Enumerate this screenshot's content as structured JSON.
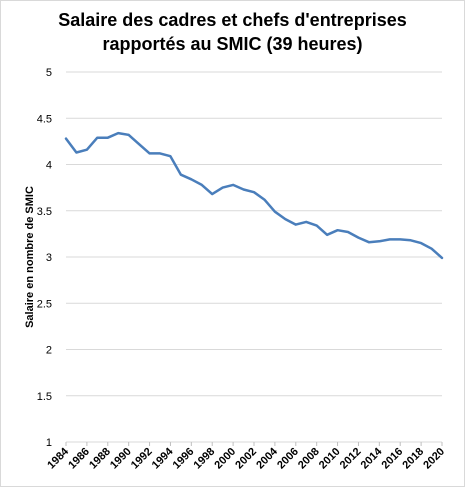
{
  "chart_data": {
    "type": "line",
    "title_lines": [
      "Salaire des cadres et chefs d'entreprises",
      "rapportés au SMIC (39 heures)"
    ],
    "xlabel": "",
    "ylabel": "Salaire en nombre de SMIC",
    "ylim": [
      1,
      5
    ],
    "xlim": [
      1984,
      2020
    ],
    "y_ticks": [
      "1",
      "1.5",
      "2",
      "2.5",
      "3",
      "3.5",
      "4",
      "4.5",
      "5"
    ],
    "x_ticks": [
      "1984",
      "1986",
      "1988",
      "1990",
      "1992",
      "1994",
      "1996",
      "1998",
      "2000",
      "2002",
      "2004",
      "2006",
      "2008",
      "2010",
      "2012",
      "2014",
      "2016",
      "2018",
      "2020"
    ],
    "grid": true,
    "legend": "none",
    "line_color": "#4a7ebb",
    "series": [
      {
        "x": [
          1984,
          1985,
          1986,
          1987,
          1988,
          1989,
          1990,
          1991,
          1992,
          1993,
          1994,
          1995,
          1996,
          1997,
          1998,
          1999,
          2000,
          2001,
          2002,
          2003,
          2004,
          2005,
          2006,
          2007,
          2008,
          2009,
          2010,
          2011,
          2012,
          2013,
          2014,
          2015,
          2016,
          2017,
          2018,
          2019,
          2020
        ],
        "values": [
          4.28,
          4.13,
          4.16,
          4.29,
          4.29,
          4.34,
          4.32,
          4.22,
          4.12,
          4.12,
          4.09,
          3.89,
          3.84,
          3.78,
          3.68,
          3.75,
          3.78,
          3.73,
          3.7,
          3.62,
          3.49,
          3.41,
          3.35,
          3.38,
          3.34,
          3.24,
          3.29,
          3.27,
          3.21,
          3.16,
          3.17,
          3.19,
          3.19,
          3.18,
          3.15,
          3.09,
          2.99
        ]
      }
    ]
  }
}
